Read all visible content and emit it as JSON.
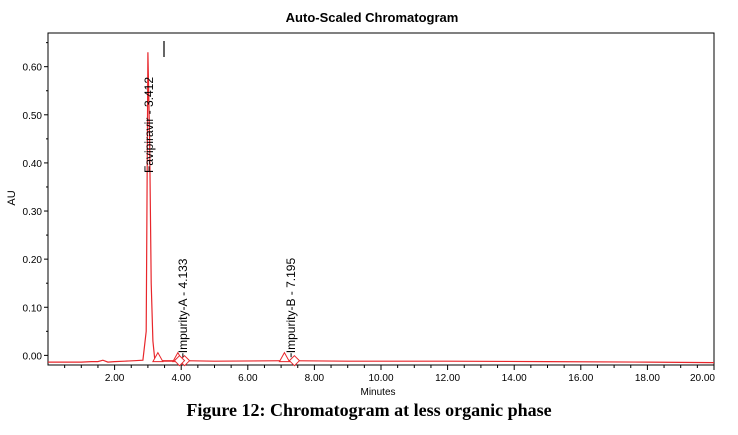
{
  "chart_data": {
    "type": "line",
    "title": "Auto-Scaled Chromatogram",
    "xlabel": "Minutes",
    "ylabel": "AU",
    "xlim": [
      0.0,
      20.0
    ],
    "ylim": [
      -0.02,
      0.67
    ],
    "x_ticks": [
      2.0,
      4.0,
      6.0,
      8.0,
      10.0,
      12.0,
      14.0,
      16.0,
      18.0,
      20.0
    ],
    "x_tick_labels": [
      "2.00",
      "4.00",
      "6.00",
      "8.00",
      "10.00",
      "12.00",
      "14.00",
      "16.00",
      "18.00",
      "20.00"
    ],
    "y_ticks": [
      0.0,
      0.1,
      0.2,
      0.3,
      0.4,
      0.5,
      0.6
    ],
    "y_tick_labels": [
      "0.00",
      "0.10",
      "0.20",
      "0.30",
      "0.40",
      "0.50",
      "0.60"
    ],
    "line_color": "#e8262b",
    "series": [
      {
        "x": [
          0.0,
          1.0,
          1.3,
          1.5,
          1.65,
          1.8,
          2.0,
          2.3,
          2.6,
          2.85,
          2.95,
          3.0,
          3.05,
          3.1,
          3.15,
          3.2,
          3.3,
          3.5,
          3.8,
          4.1,
          5.0,
          7.2,
          9.0,
          12.0,
          15.0,
          18.0,
          20.0
        ],
        "y": [
          -0.014,
          -0.014,
          -0.013,
          -0.013,
          -0.01,
          -0.014,
          -0.013,
          -0.012,
          -0.011,
          -0.01,
          0.05,
          0.63,
          0.45,
          0.15,
          0.03,
          -0.005,
          -0.011,
          -0.012,
          -0.012,
          -0.011,
          -0.012,
          -0.011,
          -0.012,
          -0.012,
          -0.013,
          -0.014,
          -0.015
        ]
      }
    ],
    "peaks": [
      {
        "name": "Favipiravir - 3.412",
        "x": 3.0,
        "y": 0.63
      },
      {
        "name": "Impurity-A - 4.133",
        "x": 4.05,
        "y": -0.008
      },
      {
        "name": "Impurity-B - 7.195",
        "x": 7.3,
        "y": -0.008
      }
    ],
    "integration_markers": [
      {
        "shape": "triangle",
        "x": 3.3
      },
      {
        "shape": "triangle",
        "x": 3.9
      },
      {
        "shape": "diamond",
        "x": 4.1
      },
      {
        "shape": "diamond",
        "x": 3.95
      },
      {
        "shape": "triangle",
        "x": 7.1
      },
      {
        "shape": "diamond",
        "x": 7.4
      }
    ]
  },
  "caption": "Figure 12: Chromatogram at less organic phase"
}
